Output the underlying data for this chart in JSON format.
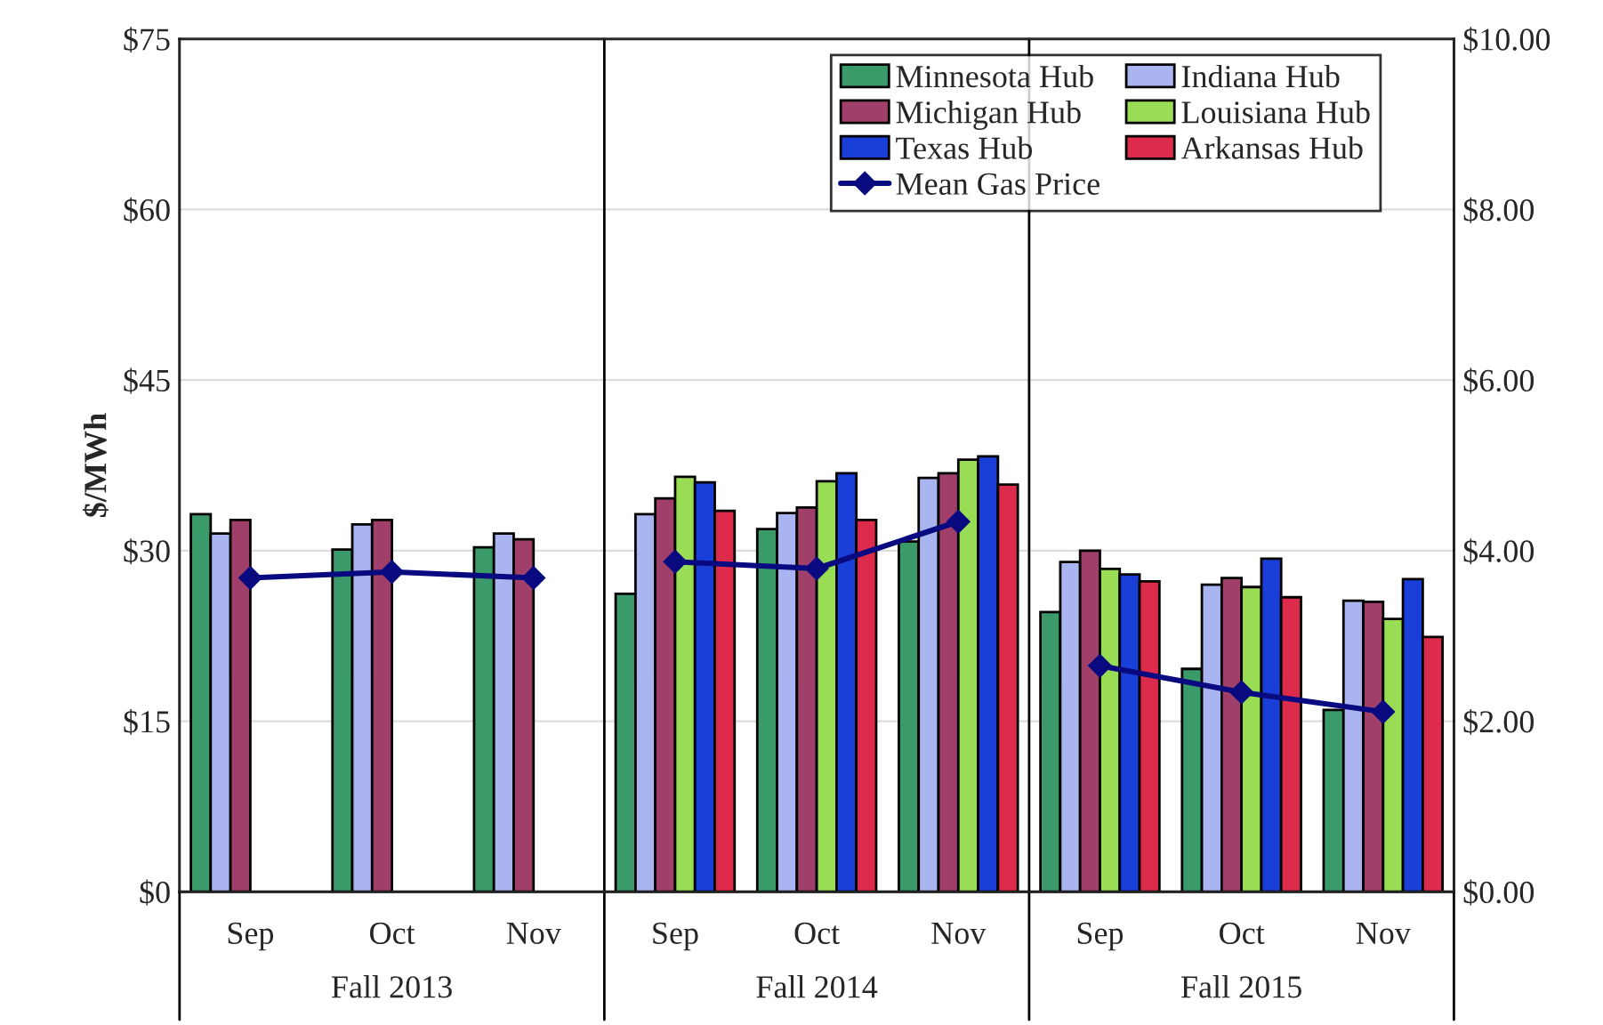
{
  "chart_data": {
    "type": "bar",
    "ylabel": "$/MWh",
    "categories": [
      "Sep",
      "Oct",
      "Nov",
      "Sep",
      "Oct",
      "Nov",
      "Sep",
      "Oct",
      "Nov"
    ],
    "annotations": [
      "Fall 2013",
      "Fall 2014",
      "Fall 2015"
    ],
    "series": [
      {
        "name": "Minnesota Hub",
        "color": "#3a9a6a",
        "values": [
          33.2,
          30.1,
          30.3,
          26.2,
          31.9,
          30.8,
          24.6,
          19.6,
          16.0
        ]
      },
      {
        "name": "Indiana Hub",
        "color": "#aab4f0",
        "values": [
          31.5,
          32.3,
          31.5,
          33.2,
          33.3,
          36.4,
          29.0,
          27.0,
          25.6
        ]
      },
      {
        "name": "Michigan Hub",
        "color": "#a0406a",
        "values": [
          32.7,
          32.7,
          31.0,
          34.6,
          33.8,
          36.8,
          30.0,
          27.6,
          25.5
        ]
      },
      {
        "name": "Louisiana Hub",
        "color": "#99dd55",
        "values": [
          null,
          null,
          null,
          36.5,
          36.1,
          38.0,
          28.4,
          26.8,
          24.0
        ]
      },
      {
        "name": "Texas Hub",
        "color": "#1a3ed8",
        "values": [
          null,
          null,
          null,
          36.0,
          36.8,
          38.3,
          27.9,
          29.3,
          27.5
        ]
      },
      {
        "name": "Arkansas Hub",
        "color": "#dd2b4b",
        "values": [
          null,
          null,
          null,
          33.5,
          32.7,
          35.8,
          27.3,
          25.9,
          22.4
        ]
      },
      {
        "name": "Mean Gas Price",
        "type": "line",
        "axis": "y2",
        "color": "#0a0a80",
        "marker": "diamond",
        "values": [
          3.68,
          3.75,
          3.68,
          3.87,
          3.79,
          4.34,
          2.65,
          2.34,
          2.11
        ]
      }
    ],
    "ylim": [
      0,
      75
    ],
    "yticks": [
      {
        "value": 0,
        "label": "$0"
      },
      {
        "value": 15,
        "label": "$15"
      },
      {
        "value": 30,
        "label": "$30"
      },
      {
        "value": 45,
        "label": "$45"
      },
      {
        "value": 60,
        "label": "$60"
      },
      {
        "value": 75,
        "label": "$75"
      }
    ],
    "y2lim": [
      0,
      10
    ],
    "y2ticks": [
      {
        "value": 0,
        "label": "$0.00"
      },
      {
        "value": 2,
        "label": "$2.00"
      },
      {
        "value": 4,
        "label": "$4.00"
      },
      {
        "value": 6,
        "label": "$6.00"
      },
      {
        "value": 8,
        "label": "$8.00"
      },
      {
        "value": 10,
        "label": "$10.00"
      }
    ],
    "grid": "y",
    "legend": "top right"
  }
}
